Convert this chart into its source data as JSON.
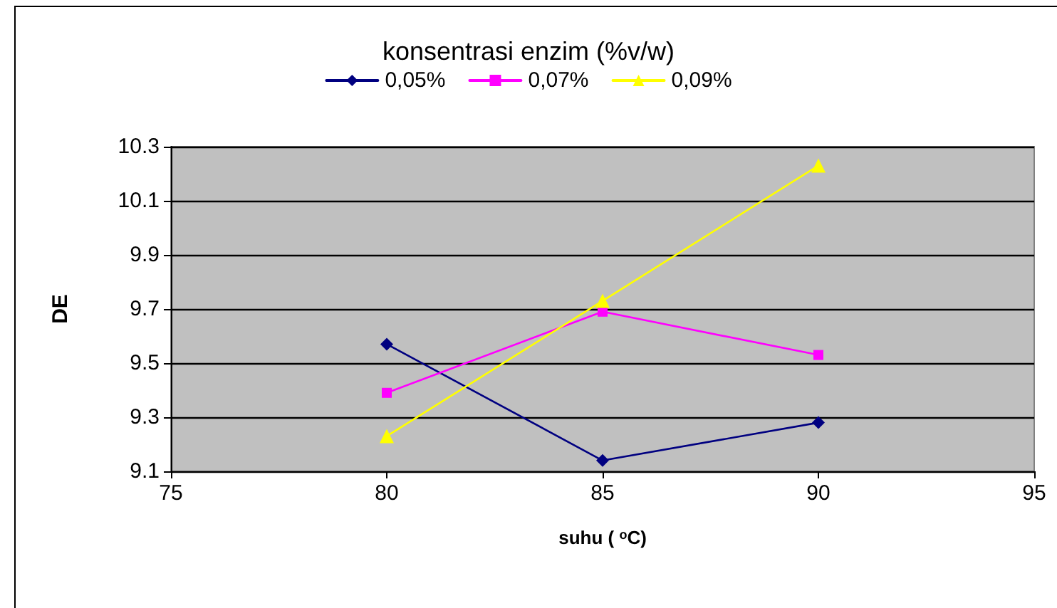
{
  "chart_data": {
    "type": "line",
    "legend_title": "konsentrasi enzim (%v/w)",
    "xlabel": "suhu ( $^{o}$C)",
    "ylabel": "DE",
    "x": [
      80,
      85,
      90
    ],
    "series": [
      {
        "name": "0,05%",
        "color": "#000080",
        "marker": "diamond",
        "values": [
          9.57,
          9.14,
          9.28
        ]
      },
      {
        "name": "0,07%",
        "color": "#ff00ff",
        "marker": "square",
        "values": [
          9.39,
          9.69,
          9.53
        ]
      },
      {
        "name": "0,09%",
        "color": "#ffff00",
        "marker": "triangle",
        "values": [
          9.23,
          9.73,
          10.23
        ]
      }
    ],
    "xlim": [
      75,
      95
    ],
    "xticks": [
      75,
      80,
      85,
      90,
      95
    ],
    "ylim": [
      9.1,
      10.3
    ],
    "yticks": [
      9.1,
      9.3,
      9.5,
      9.7,
      9.9,
      10.1,
      10.3
    ],
    "grid": "y",
    "legend": "top",
    "line_style": "solid"
  }
}
